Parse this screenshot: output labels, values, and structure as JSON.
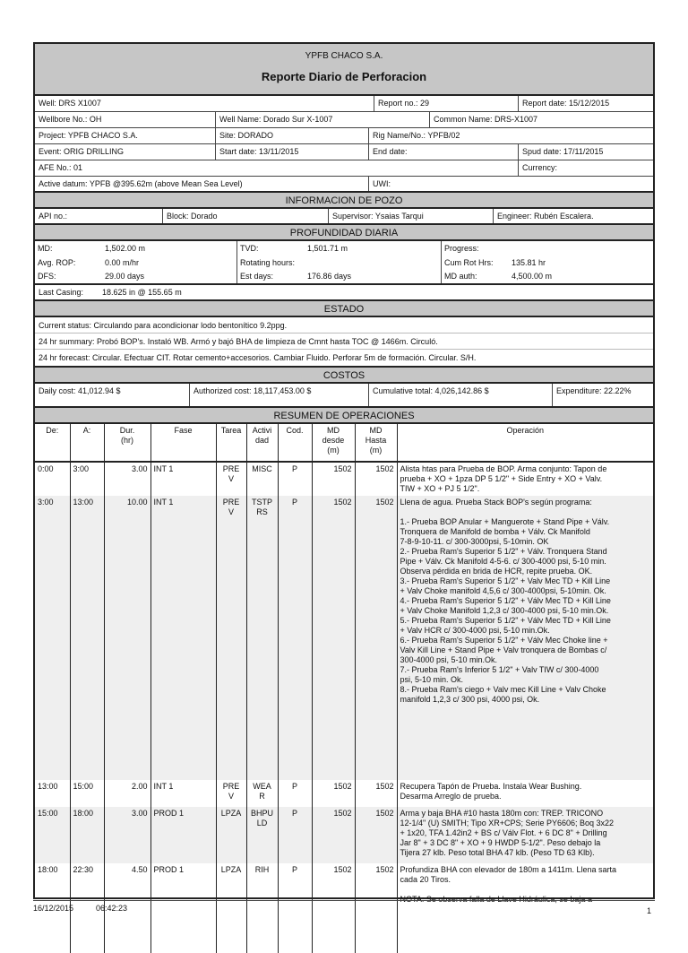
{
  "header": {
    "company": "YPFB CHACO S.A.",
    "title": "Reporte Diario de Perforacion"
  },
  "info": {
    "well": "Well: DRS X1007",
    "report_no": "Report no.:  29",
    "report_date": "Report date: 15/12/2015",
    "wellbore": "Wellbore No.: OH",
    "well_name": "Well Name: Dorado Sur X-1007",
    "common_name": "Common Name: DRS-X1007",
    "project": "Project: YPFB CHACO S.A.",
    "site": "Site: DORADO",
    "rig": "Rig Name/No.: YPFB/02",
    "event": "Event: ORIG DRILLING",
    "start_date": "Start date: 13/11/2015",
    "end_date": "End date:",
    "spud_date": "Spud date: 17/11/2015",
    "afe": "AFE No.: 01",
    "currency": "Currency:",
    "datum": "Active datum:   YPFB @395.62m (above Mean Sea Level)",
    "uwi": "UWI:"
  },
  "pozo": {
    "heading": "INFORMACION DE POZO",
    "api": "API no.:",
    "block": "Block: Dorado",
    "supervisor": "Supervisor: Ysaias Tarqui",
    "engineer": "Engineer: Rubén Escalera."
  },
  "profundidad": {
    "heading": "PROFUNDIDAD DIARIA",
    "col1": [
      {
        "k": "MD:",
        "v": "1,502.00 m"
      },
      {
        "k": "Avg. ROP:",
        "v": "0.00 m/hr"
      },
      {
        "k": "DFS:",
        "v": "29.00 days"
      }
    ],
    "col2": [
      {
        "k": "TVD:",
        "v": "1,501.71 m"
      },
      {
        "k": "Rotating hours:",
        "v": ""
      },
      {
        "k": "Est days:",
        "v": "176.86 days"
      }
    ],
    "col3": [
      {
        "k": "Progress:",
        "v": ""
      },
      {
        "k": "Cum Rot Hrs:",
        "v": "135.81 hr"
      },
      {
        "k": "MD auth:",
        "v": "4,500.00 m"
      }
    ],
    "last_casing_label": "Last Casing:",
    "last_casing": "18.625 in @ 155.65 m"
  },
  "estado": {
    "heading": "ESTADO",
    "current": "Current status: Circulando para acondicionar lodo bentonítico 9.2ppg.",
    "summary": "24 hr summary: Probó BOP's. Instaló WB. Armó y bajó BHA de limpieza de Cmnt hasta TOC @ 1466m. Circuló.",
    "forecast": "24 hr forecast: Circular. Efectuar CIT. Rotar cemento+accesorios. Cambiar Fluido. Perforar 5m de formación. Circular. S/H."
  },
  "costos": {
    "heading": "COSTOS",
    "daily": "Daily cost: 41,012.94 $",
    "authorized": "Authorized cost: 18,117,453.00 $",
    "cumulative": "Cumulative total: 4,026,142.86 $",
    "expenditure": "Expenditure: 22.22%"
  },
  "operaciones": {
    "heading": "RESUMEN DE OPERACIONES",
    "columns": [
      "De:",
      "A:",
      "Dur.\n(hr)",
      "Fase",
      "Tarea",
      "Activi\ndad",
      "Cod.",
      "MD\ndesde\n(m)",
      "MD\nHasta\n(m)",
      "Operación"
    ],
    "rows": [
      {
        "de": "0:00",
        "a": "3:00",
        "dur": "3.00",
        "fase": "INT 1",
        "tarea": "PRE\nV",
        "act": "MISC",
        "cod": "P",
        "desde": "1502",
        "hasta": "1502",
        "op": "Alista htas para Prueba de BOP. Arma conjunto: Tapon de\nprueba + XO + 1pza DP 5 1/2\" + Side Entry + XO + Valv.\nTIW + XO + PJ 5 1/2\"."
      },
      {
        "de": "3:00",
        "a": "13:00",
        "dur": "10.00",
        "fase": "INT 1",
        "tarea": "PRE\nV",
        "act": "TSTP\nRS",
        "cod": "P",
        "desde": "1502",
        "hasta": "1502",
        "op": "Llena de agua. Prueba Stack BOP's según programa:\n\n1.- Prueba BOP Anular + Manguerote + Stand Pipe + Válv.\nTronquera de Manifold de bomba + Válv. Ck Manifold\n7-8-9-10-11. c/ 300-3000psi, 5-10min. OK\n2.- Prueba Ram's Superior 5 1/2\" + Válv. Tronquera Stand\nPipe + Válv. Ck Manifold 4-5-6. c/ 300-4000 psi, 5-10 min.\nObserva pérdida en brida de HCR, repite prueba. OK.\n3.- Prueba Ram's Superior 5 1/2\" + Valv Mec TD + Kill Line\n+ Valv Choke manifold 4,5,6 c/ 300-4000psi, 5-10min. Ok.\n4.- Prueba Ram's Superior 5 1/2\" + Válv Mec TD + Kill Line\n+ Valv Choke Manifold 1,2,3 c/ 300-4000 psi, 5-10 min.Ok.\n5.- Prueba Ram's Superior 5 1/2\" + Válv Mec TD + Kill Line\n+ Valv HCR c/ 300-4000 psi, 5-10 min.Ok.\n6.- Prueba Ram's Superior 5 1/2\" + Válv Mec Choke line +\nValv Kill Line + Stand Pipe + Valv tronquera de Bombas c/\n300-4000 psi, 5-10 min.Ok.\n7.- Prueba Ram's Inferior 5 1/2\" + Valv TIW  c/ 300-4000\npsi, 5-10 min. Ok.\n8.- Prueba Ram's ciego + Valv mec Kill Line + Valv Choke\nmanifold 1,2,3 c/ 300 psi, 4000 psi, Ok."
      },
      {
        "de": "13:00",
        "a": "15:00",
        "dur": "2.00",
        "fase": "INT 1",
        "tarea": "PRE\nV",
        "act": "WEA\nR",
        "cod": "P",
        "desde": "1502",
        "hasta": "1502",
        "op": "Recupera Tapón de Prueba. Instala Wear Bushing.\nDesarma Arreglo de prueba."
      },
      {
        "de": "15:00",
        "a": "18:00",
        "dur": "3.00",
        "fase": "PROD 1",
        "tarea": "LPZA",
        "act": "BHPU\nLD",
        "cod": "P",
        "desde": "1502",
        "hasta": "1502",
        "op": "Arma y baja BHA #10 hasta 180m con: TREP. TRICONO\n12-1/4\" (U) SMITH; Tipo XR+CPS; Serie PY6606; Boq 3x22\n+ 1x20, TFA 1.42in2 + BS c/ Válv Flot. + 6 DC 8\" + Drilling\nJar 8\" + 3 DC 8\" + XO + 9 HWDP 5-1/2\".  Peso debajo la\nTijera 27 klb. Peso total BHA 47 klb. (Peso TD 63 Klb)."
      },
      {
        "de": "18:00",
        "a": "22:30",
        "dur": "4.50",
        "fase": "PROD 1",
        "tarea": "LPZA",
        "act": "RIH",
        "cod": "P",
        "desde": "1502",
        "hasta": "1502",
        "op": "Profundiza BHA con elevador de 180m a 1411m. Llena sarta\ncada 20 Tiros.\n\nNOTA: Se observa falla de Llave Hidráulica, se baja a"
      }
    ]
  },
  "footer": {
    "date": "16/12/2015",
    "time": "06:42:23",
    "page": "1"
  }
}
